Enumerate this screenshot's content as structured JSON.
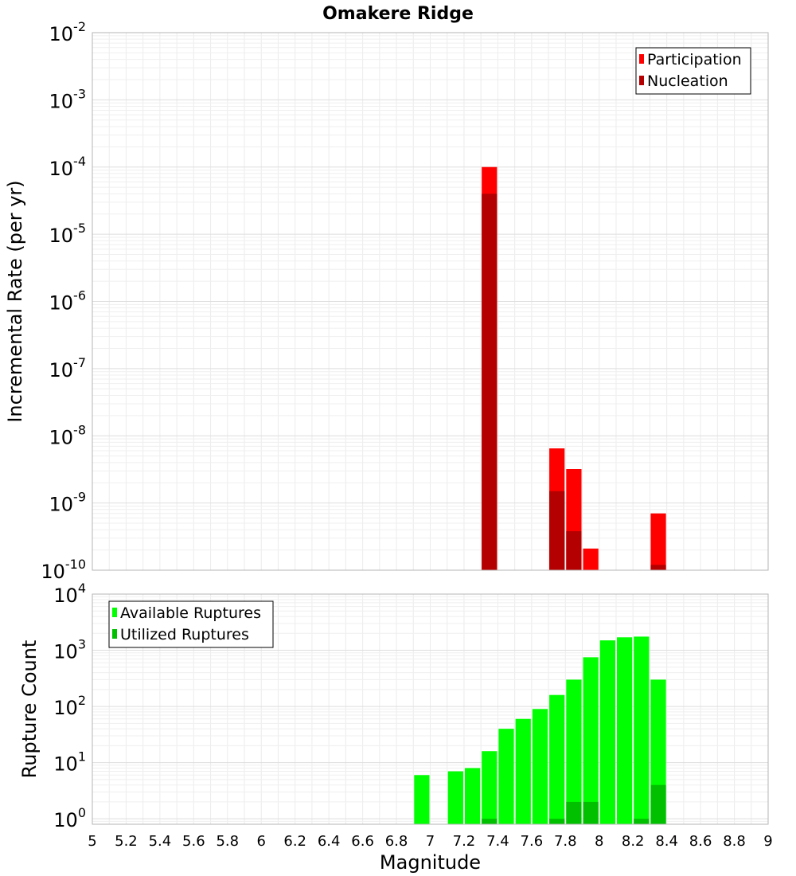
{
  "chart_data": [
    {
      "type": "bar",
      "title": "Omakere Ridge",
      "xlabel": "",
      "ylabel": "Incremental Rate (per yr)",
      "yscale": "log",
      "ylim": [
        1e-10,
        0.01
      ],
      "xlim": [
        5,
        9
      ],
      "bin_width": 0.1,
      "grid": true,
      "legend_position": "top-right",
      "x_ticks": [],
      "y_ticks": [
        {
          "base": "10",
          "exp": "-2"
        },
        {
          "base": "10",
          "exp": "-3"
        },
        {
          "base": "10",
          "exp": "-4"
        },
        {
          "base": "10",
          "exp": "-5"
        },
        {
          "base": "10",
          "exp": "-6"
        },
        {
          "base": "10",
          "exp": "-7"
        },
        {
          "base": "10",
          "exp": "-8"
        },
        {
          "base": "10",
          "exp": "-9"
        },
        {
          "base": "10",
          "exp": "-10"
        }
      ],
      "series": [
        {
          "name": "Participation",
          "color": "#ff0000",
          "x": [
            7.35,
            7.75,
            7.85,
            7.95,
            8.35
          ],
          "values": [
            0.0001,
            6.5e-09,
            3.2e-09,
            2.1e-10,
            7e-10
          ]
        },
        {
          "name": "Nucleation",
          "color": "#b40000",
          "x": [
            7.35,
            7.75,
            7.85,
            8.35
          ],
          "values": [
            4e-05,
            1.5e-09,
            3.8e-10,
            1.2e-10
          ]
        }
      ]
    },
    {
      "type": "bar",
      "title": "",
      "xlabel": "Magnitude",
      "ylabel": "Rupture Count",
      "yscale": "log",
      "ylim": [
        0.8,
        10000
      ],
      "xlim": [
        5,
        9
      ],
      "bin_width": 0.1,
      "grid": true,
      "legend_position": "top-left",
      "x_ticks": [
        "5",
        "5.2",
        "5.4",
        "5.6",
        "5.8",
        "6",
        "6.2",
        "6.4",
        "6.6",
        "6.8",
        "7",
        "7.2",
        "7.4",
        "7.6",
        "7.8",
        "8",
        "8.2",
        "8.4",
        "8.6",
        "8.8",
        "9"
      ],
      "y_ticks": [
        {
          "base": "10",
          "exp": "4"
        },
        {
          "base": "10",
          "exp": "3"
        },
        {
          "base": "10",
          "exp": "2"
        },
        {
          "base": "10",
          "exp": "1"
        },
        {
          "base": "10",
          "exp": "0"
        }
      ],
      "series": [
        {
          "name": "Available Ruptures",
          "color": "#00ff00",
          "x": [
            6.95,
            7.15,
            7.25,
            7.35,
            7.45,
            7.55,
            7.65,
            7.75,
            7.85,
            7.95,
            8.05,
            8.15,
            8.25,
            8.35
          ],
          "values": [
            6,
            7,
            8,
            16,
            40,
            60,
            90,
            160,
            300,
            750,
            1500,
            1700,
            1750,
            300
          ]
        },
        {
          "name": "Utilized Ruptures",
          "color": "#00c000",
          "x": [
            7.35,
            7.75,
            7.85,
            7.95,
            8.25,
            8.35
          ],
          "values": [
            1,
            1,
            2,
            2,
            1,
            4
          ]
        }
      ]
    }
  ]
}
